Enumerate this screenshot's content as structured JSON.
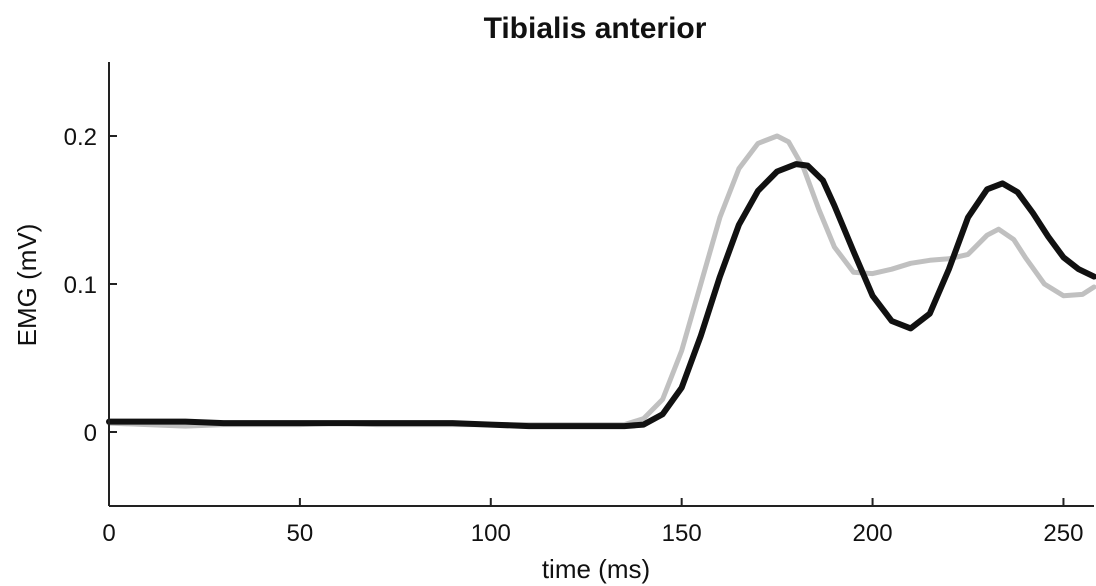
{
  "chart_data": {
    "type": "line",
    "title": "Tibialis anterior",
    "xlabel": "time (ms)",
    "ylabel": "EMG (mV)",
    "xlim": [
      0,
      258
    ],
    "ylim": [
      -0.05,
      0.25
    ],
    "x_ticks": [
      0,
      50,
      100,
      150,
      200,
      250
    ],
    "y_ticks": [
      0,
      0.1,
      0.2
    ],
    "x_tick_labels": [
      "0",
      "50",
      "100",
      "150",
      "200",
      "250"
    ],
    "y_tick_labels": [
      "0",
      "0.1",
      "0.2"
    ],
    "grid": false,
    "series": [
      {
        "color": "#c0c0c0",
        "x": [
          0,
          10,
          20,
          30,
          40,
          50,
          60,
          70,
          80,
          90,
          100,
          110,
          120,
          130,
          135,
          140,
          145,
          150,
          155,
          160,
          165,
          170,
          175,
          178,
          182,
          186,
          190,
          195,
          200,
          205,
          210,
          215,
          220,
          225,
          230,
          233,
          237,
          240,
          245,
          250,
          255,
          258
        ],
        "y": [
          0.006,
          0.005,
          0.004,
          0.005,
          0.005,
          0.005,
          0.006,
          0.005,
          0.005,
          0.005,
          0.005,
          0.005,
          0.005,
          0.005,
          0.005,
          0.009,
          0.022,
          0.055,
          0.1,
          0.145,
          0.178,
          0.195,
          0.2,
          0.196,
          0.178,
          0.15,
          0.125,
          0.108,
          0.107,
          0.11,
          0.114,
          0.116,
          0.117,
          0.12,
          0.133,
          0.137,
          0.13,
          0.118,
          0.1,
          0.092,
          0.093,
          0.098
        ]
      },
      {
        "color": "#111111",
        "x": [
          0,
          10,
          20,
          30,
          40,
          50,
          60,
          70,
          80,
          90,
          100,
          110,
          120,
          130,
          135,
          140,
          145,
          150,
          155,
          160,
          165,
          170,
          175,
          180,
          183,
          187,
          190,
          195,
          200,
          205,
          210,
          215,
          220,
          225,
          230,
          234,
          238,
          242,
          246,
          250,
          254,
          258
        ],
        "y": [
          0.007,
          0.007,
          0.007,
          0.006,
          0.006,
          0.006,
          0.006,
          0.006,
          0.006,
          0.006,
          0.005,
          0.004,
          0.004,
          0.004,
          0.004,
          0.005,
          0.012,
          0.03,
          0.065,
          0.105,
          0.14,
          0.163,
          0.176,
          0.181,
          0.18,
          0.17,
          0.153,
          0.122,
          0.092,
          0.075,
          0.07,
          0.08,
          0.11,
          0.145,
          0.164,
          0.168,
          0.162,
          0.148,
          0.132,
          0.118,
          0.11,
          0.105
        ]
      }
    ]
  }
}
